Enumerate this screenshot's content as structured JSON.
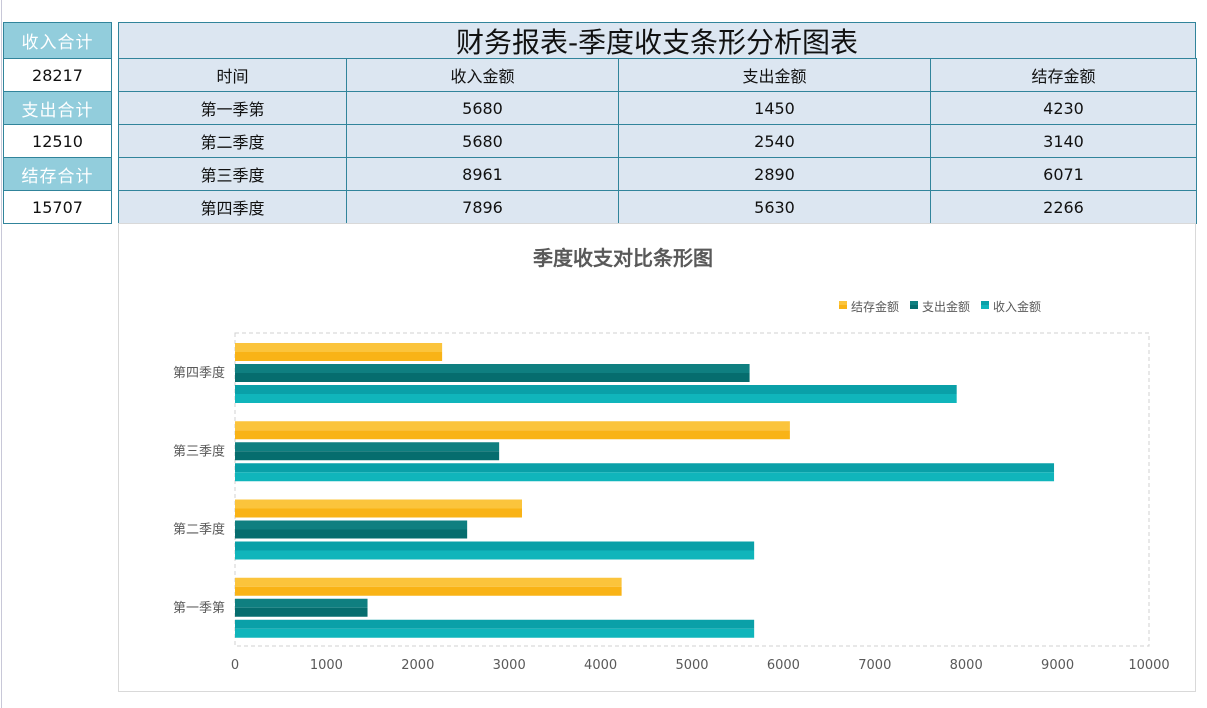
{
  "summary": [
    {
      "label": "收入合计",
      "value": "28217"
    },
    {
      "label": "支出合计",
      "value": "12510"
    },
    {
      "label": "结存合计",
      "value": "15707"
    }
  ],
  "table": {
    "title": "财务报表-季度收支条形分析图表",
    "headers": [
      "时间",
      "收入金额",
      "支出金额",
      "结存金额"
    ],
    "rows": [
      [
        "第一季第",
        "5680",
        "1450",
        "4230"
      ],
      [
        "第二季度",
        "5680",
        "2540",
        "3140"
      ],
      [
        "第三季度",
        "8961",
        "2890",
        "6071"
      ],
      [
        "第四季度",
        "7896",
        "5630",
        "2266"
      ]
    ]
  },
  "chart_data": {
    "type": "bar",
    "orientation": "horizontal",
    "title": "季度收支对比条形图",
    "categories": [
      "第一季第",
      "第二季度",
      "第三季度",
      "第四季度"
    ],
    "series": [
      {
        "name": "收入金额",
        "values": [
          5680,
          5680,
          8961,
          7896
        ],
        "color": "#0fb1b8"
      },
      {
        "name": "支出金额",
        "values": [
          1450,
          2540,
          2890,
          5630
        ],
        "color": "#0a7678"
      },
      {
        "name": "结存金额",
        "values": [
          4230,
          3140,
          6071,
          2266
        ],
        "color": "#fbb81f"
      }
    ],
    "legend": [
      "结存金额",
      "支出金额",
      "收入金额"
    ],
    "legend_position": "top-right",
    "xlim": [
      0,
      10000
    ],
    "xticks": [
      "0",
      "1000",
      "2000",
      "3000",
      "4000",
      "5000",
      "6000",
      "7000",
      "8000",
      "9000",
      "10000"
    ],
    "grid": false
  }
}
